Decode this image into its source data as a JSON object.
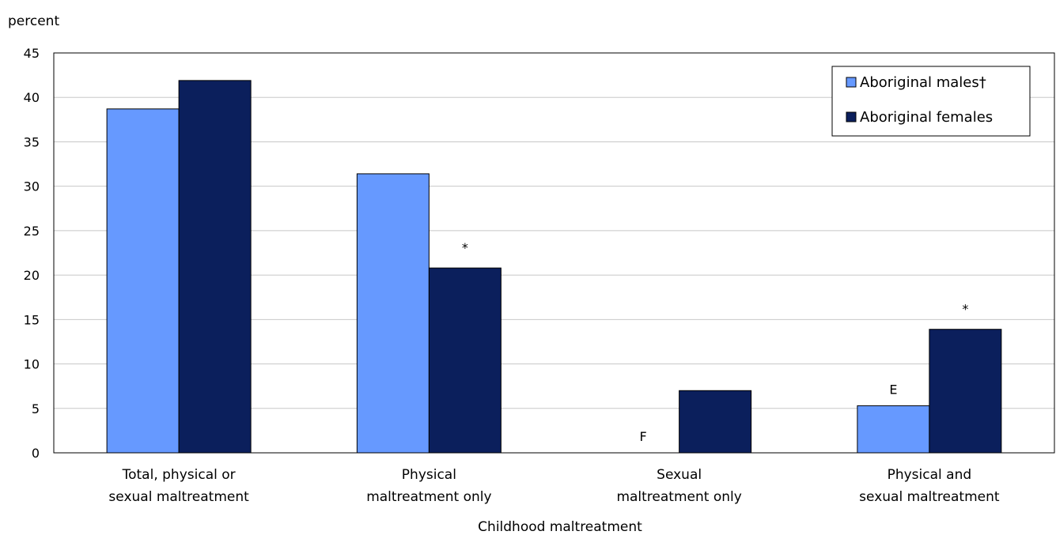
{
  "chart_data": {
    "type": "bar",
    "ylabel": "percent",
    "xlabel": "Childhood maltreatment",
    "ylim": [
      0,
      45
    ],
    "yticks": [
      0,
      5,
      10,
      15,
      20,
      25,
      30,
      35,
      40,
      45
    ],
    "grid": true,
    "legend_position": "top-right",
    "categories": [
      [
        "Total, physical or",
        "sexual maltreatment"
      ],
      [
        "Physical",
        "maltreatment only"
      ],
      [
        "Sexual",
        "maltreatment only"
      ],
      [
        "Physical and",
        "sexual maltreatment"
      ]
    ],
    "series": [
      {
        "name": "Aboriginal males†",
        "color": "#6699ff",
        "values": [
          38.7,
          31.4,
          null,
          5.3
        ],
        "notes": [
          "",
          "",
          "F",
          "E"
        ]
      },
      {
        "name": "Aboriginal females",
        "color": "#0b1f5c",
        "values": [
          41.9,
          20.8,
          7.0,
          13.9
        ],
        "notes": [
          "",
          "*",
          "",
          "*"
        ]
      }
    ]
  }
}
